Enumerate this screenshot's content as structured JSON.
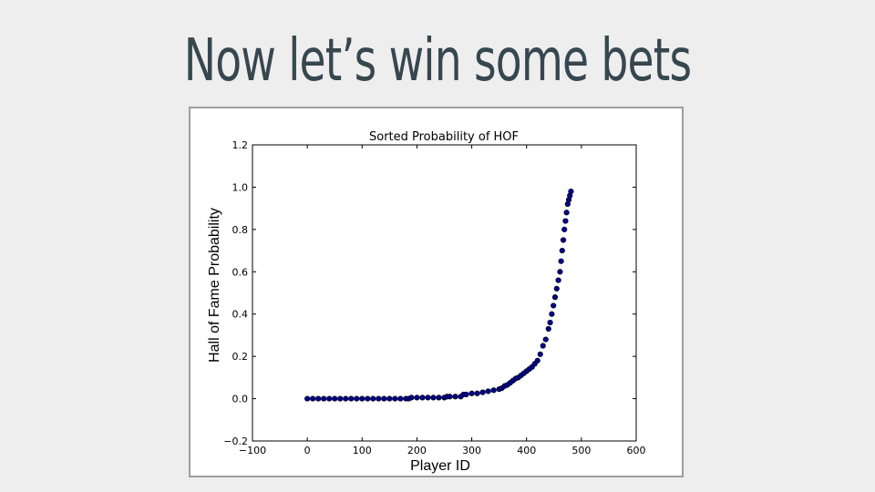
{
  "slide": {
    "title": "Now let’s win some bets"
  },
  "colors": {
    "background": "#eeeeee",
    "title": "#37474f",
    "marker": "#00008b",
    "frame": "#9e9e9e"
  },
  "chart_data": {
    "type": "scatter",
    "title": "Sorted Probability of HOF",
    "xlabel": "Player ID",
    "ylabel": "Hall of Fame Probability",
    "xlim": [
      -100,
      600
    ],
    "ylim": [
      -0.2,
      1.2
    ],
    "xticks": [
      -100,
      0,
      100,
      200,
      300,
      400,
      500,
      600
    ],
    "yticks": [
      -0.2,
      0.0,
      0.2,
      0.4,
      0.6,
      0.8,
      1.0,
      1.2
    ],
    "xtick_labels": [
      "−100",
      "0",
      "100",
      "200",
      "300",
      "400",
      "500",
      "600"
    ],
    "ytick_labels": [
      "−0.2",
      "0.0",
      "0.2",
      "0.4",
      "0.6",
      "0.8",
      "1.0",
      "1.2"
    ],
    "grid": false,
    "series": [
      {
        "marker": "circle",
        "x": [
          0,
          10,
          20,
          30,
          40,
          50,
          60,
          70,
          80,
          90,
          100,
          110,
          120,
          130,
          140,
          150,
          160,
          170,
          180,
          185,
          190,
          200,
          210,
          220,
          230,
          240,
          250,
          255,
          260,
          270,
          280,
          285,
          290,
          300,
          310,
          320,
          330,
          340,
          350,
          355,
          360,
          365,
          370,
          375,
          380,
          385,
          390,
          395,
          400,
          405,
          410,
          415,
          420,
          425,
          430,
          435,
          440,
          443,
          446,
          449,
          452,
          455,
          458,
          461,
          463,
          465,
          467,
          469,
          471,
          473,
          475,
          477,
          479,
          481
        ],
        "y": [
          0,
          0,
          0,
          0,
          0,
          0,
          0,
          0,
          0,
          0,
          0,
          0,
          0,
          0,
          0,
          0,
          0,
          0,
          0,
          0,
          0.005,
          0.005,
          0.005,
          0.005,
          0.005,
          0.005,
          0.005,
          0.01,
          0.01,
          0.01,
          0.01,
          0.02,
          0.02,
          0.025,
          0.025,
          0.03,
          0.035,
          0.04,
          0.045,
          0.05,
          0.06,
          0.065,
          0.075,
          0.085,
          0.095,
          0.1,
          0.11,
          0.12,
          0.13,
          0.14,
          0.15,
          0.165,
          0.18,
          0.21,
          0.25,
          0.28,
          0.33,
          0.36,
          0.4,
          0.44,
          0.48,
          0.52,
          0.56,
          0.6,
          0.65,
          0.7,
          0.75,
          0.8,
          0.84,
          0.88,
          0.92,
          0.94,
          0.96,
          0.98
        ]
      }
    ]
  }
}
